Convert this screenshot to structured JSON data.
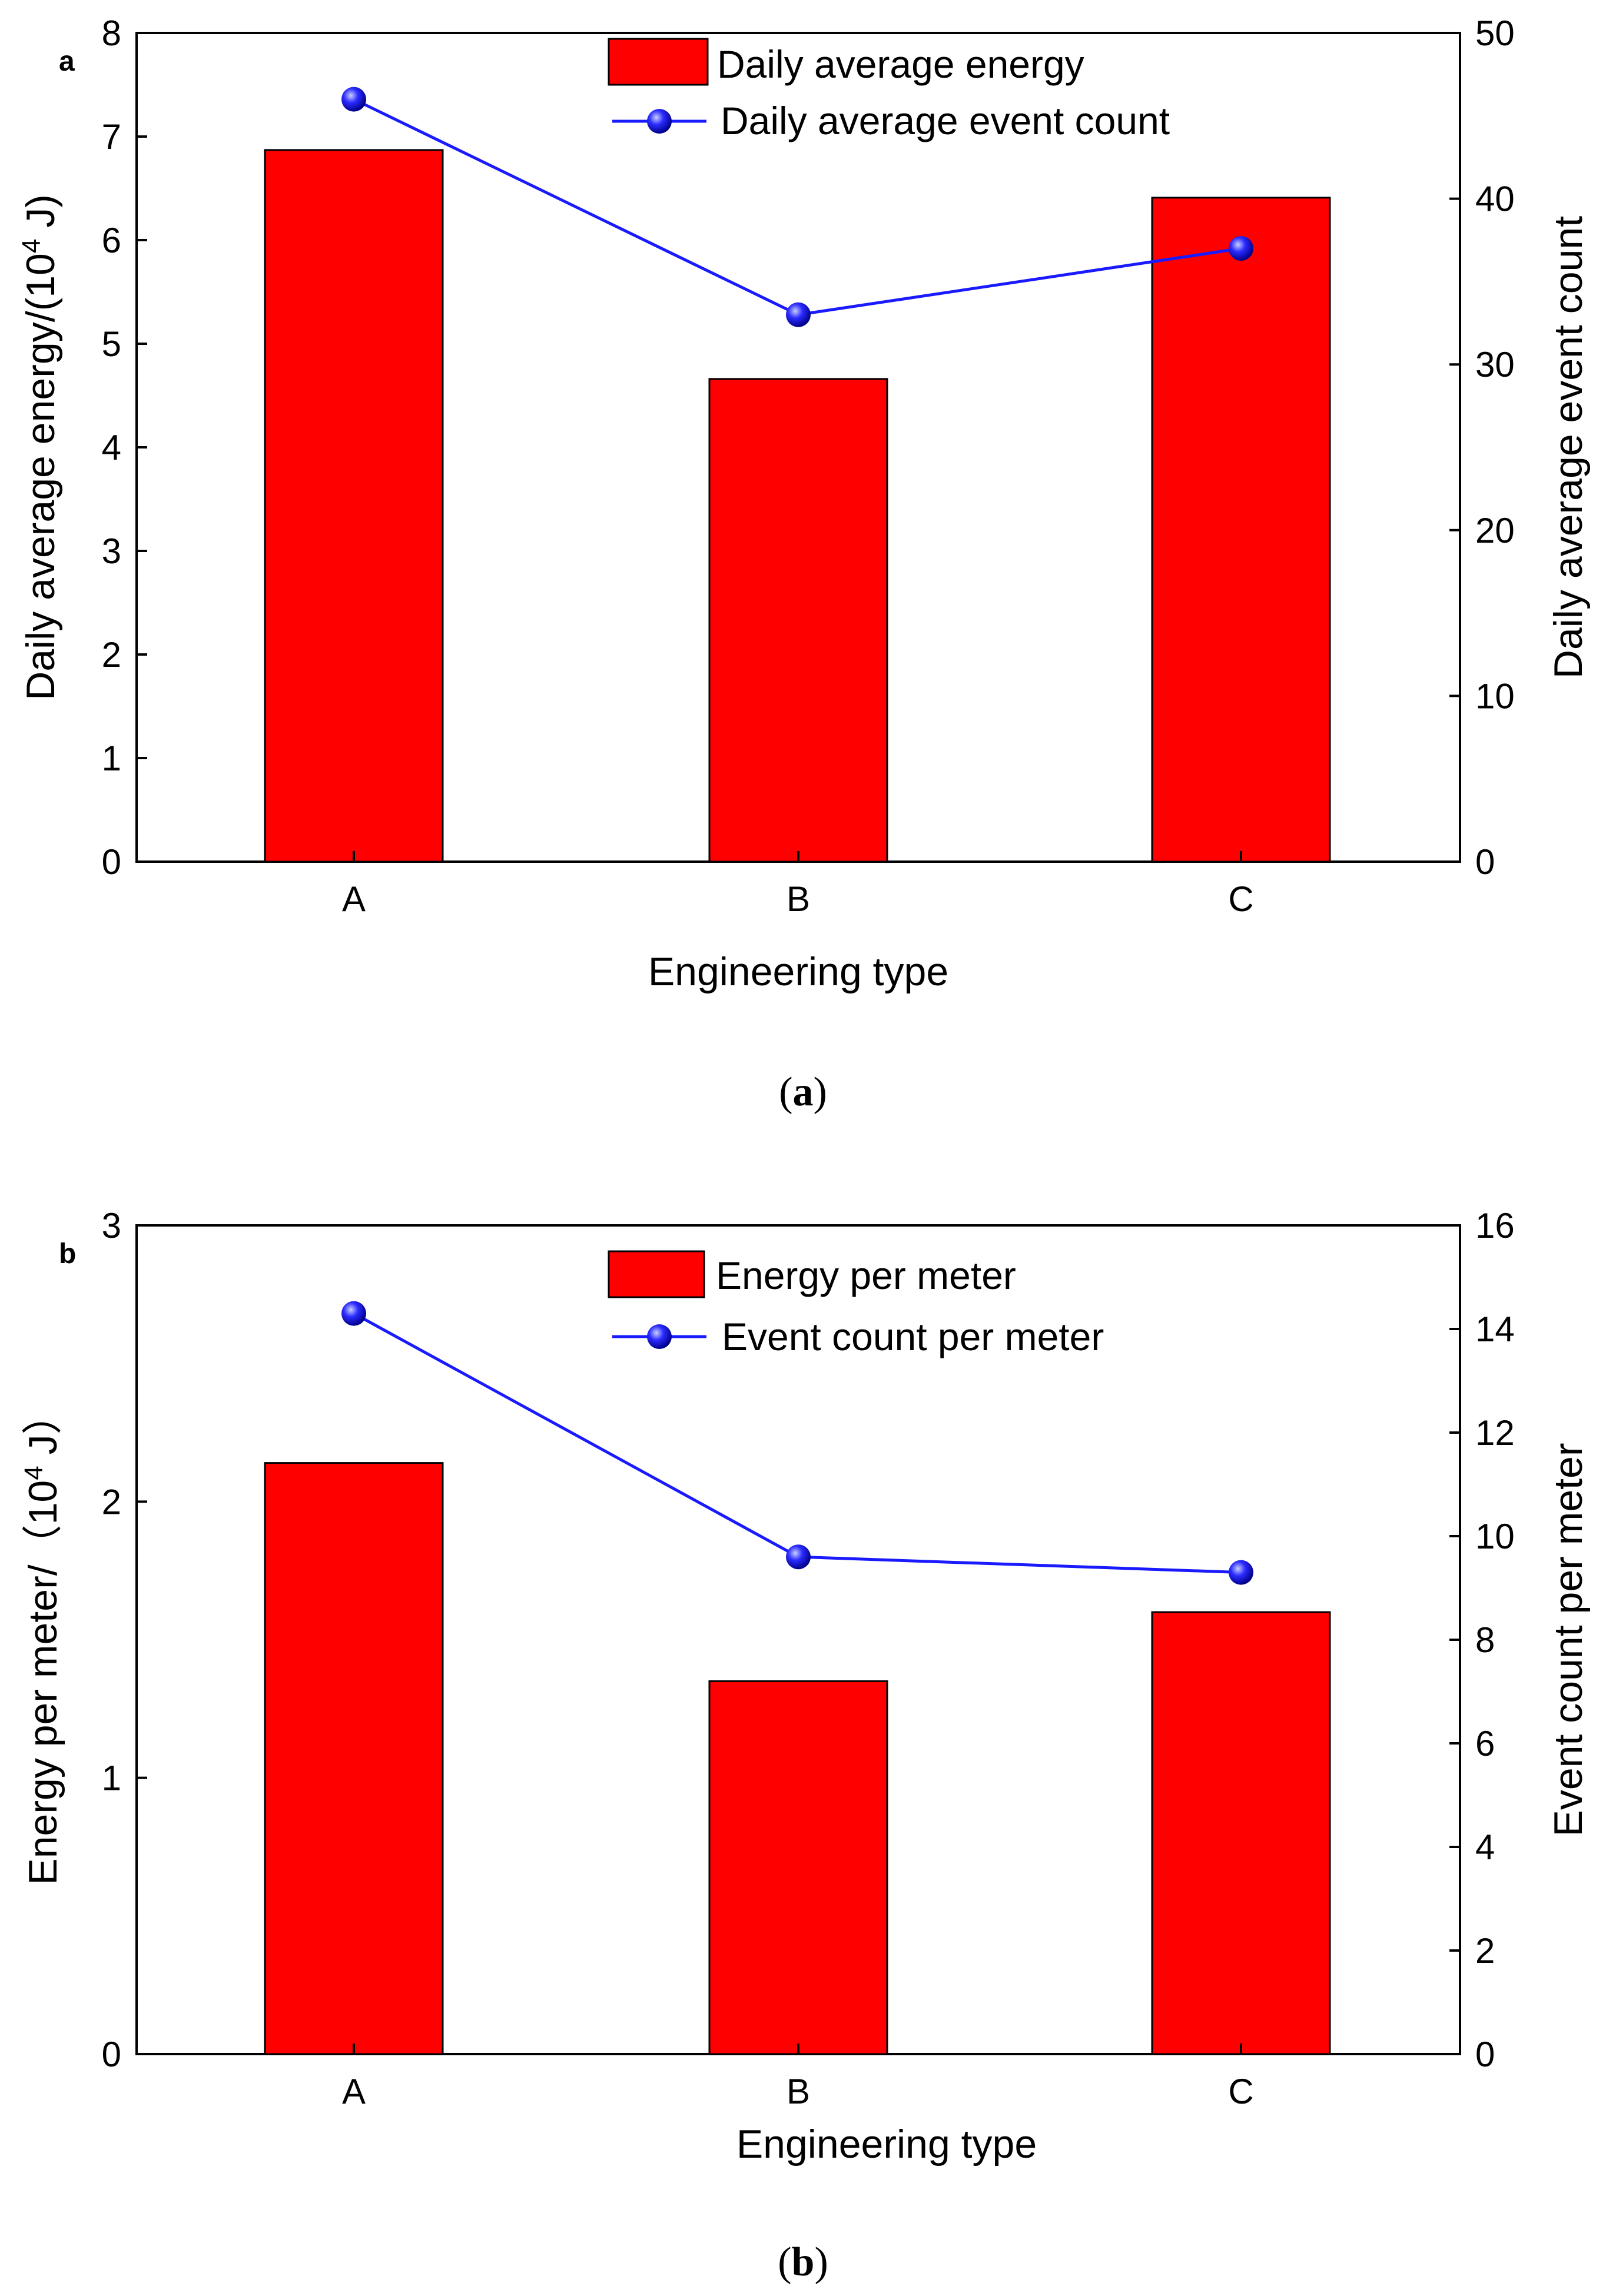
{
  "chart_data": [
    {
      "type": "bar",
      "panel_label": "a",
      "caption": {
        "open": "(",
        "letter": "a",
        "close": ")"
      },
      "categories": [
        "A",
        "B",
        "C"
      ],
      "xlabel": "Engineering type",
      "ylabel": {
        "text": "Daily average energy/(10",
        "exponent": "4",
        "unit": " J)"
      },
      "ylabel_right": "Daily average event count",
      "ylim": [
        0,
        8
      ],
      "ylim_right": [
        0,
        50
      ],
      "yticks": [
        "0",
        "1",
        "2",
        "3",
        "4",
        "5",
        "6",
        "7",
        "8"
      ],
      "yticks_right": [
        "0",
        "10",
        "20",
        "30",
        "40",
        "50"
      ],
      "series": [
        {
          "name": "Daily average energy",
          "kind": "bar",
          "axis": "left",
          "color": "#ff0000",
          "values": [
            6.87,
            4.66,
            6.41
          ]
        },
        {
          "name": "Daily average event count",
          "kind": "line",
          "axis": "right",
          "color": "#1a1aff",
          "values": [
            46,
            33,
            37
          ]
        }
      ],
      "legend": "top-center"
    },
    {
      "type": "bar",
      "panel_label": "b",
      "caption": {
        "open": "(",
        "letter": "b",
        "close": ")"
      },
      "categories": [
        "A",
        "B",
        "C"
      ],
      "xlabel": "Engineering type",
      "ylabel": {
        "text": "Energy per meter/（10",
        "exponent": "4",
        "unit": " J）"
      },
      "ylabel_right": "Event count per meter",
      "ylim": [
        0,
        3
      ],
      "ylim_right": [
        0,
        16
      ],
      "yticks": [
        "0",
        "1",
        "2",
        "3"
      ],
      "yticks_right": [
        "0",
        "2",
        "4",
        "6",
        "8",
        "10",
        "12",
        "14",
        "16"
      ],
      "series": [
        {
          "name": "Energy per meter",
          "kind": "bar",
          "axis": "left",
          "color": "#ff0000",
          "values": [
            2.14,
            1.35,
            1.6
          ]
        },
        {
          "name": "Event count per meter",
          "kind": "line",
          "axis": "right",
          "color": "#1a1aff",
          "values": [
            14.3,
            9.6,
            9.3
          ]
        }
      ],
      "legend": "top-center"
    }
  ]
}
